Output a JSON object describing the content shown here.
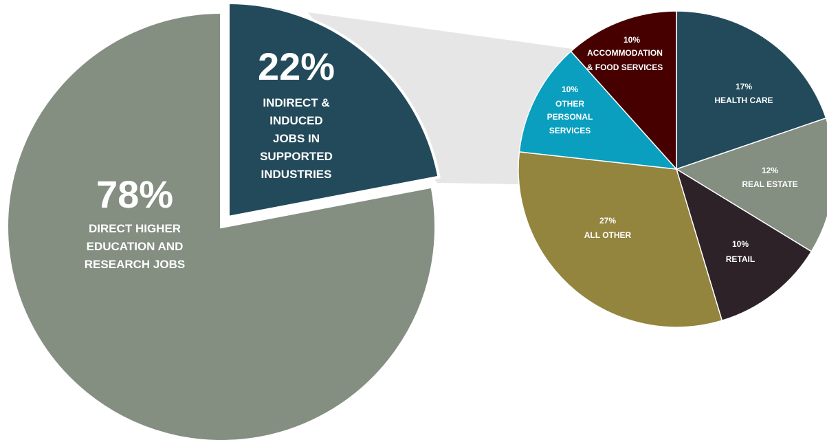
{
  "chart_data": [
    {
      "type": "pie",
      "slices": [
        {
          "value": 78,
          "pct_label": "78%",
          "label_lines": [
            "DIRECT HIGHER",
            "EDUCATION AND",
            "RESEARCH JOBS"
          ],
          "color": "#848e81"
        },
        {
          "value": 22,
          "pct_label": "22%",
          "label_lines": [
            "INDIRECT &",
            "INDUCED",
            "JOBS IN",
            "SUPPORTED",
            "INDUSTRIES"
          ],
          "color": "#234a5a",
          "exploded": true
        }
      ]
    },
    {
      "type": "pie",
      "slices": [
        {
          "value": 17,
          "pct_label": "17%",
          "label_lines": [
            "HEALTH CARE"
          ],
          "color": "#234a5a"
        },
        {
          "value": 12,
          "pct_label": "12%",
          "label_lines": [
            "REAL ESTATE"
          ],
          "color": "#848e81"
        },
        {
          "value": 10,
          "pct_label": "10%",
          "label_lines": [
            "RETAIL"
          ],
          "color": "#2e2229"
        },
        {
          "value": 27,
          "pct_label": "27%",
          "label_lines": [
            "ALL OTHER"
          ],
          "color": "#93843e"
        },
        {
          "value": 10,
          "pct_label": "10%",
          "label_lines": [
            "OTHER",
            "PERSONAL",
            "SERVICES"
          ],
          "color": "#0a9fbf"
        },
        {
          "value": 10,
          "pct_label": "10%",
          "label_lines": [
            "ACCOMMODATION",
            "& FOOD SERVICES"
          ],
          "color": "#470000"
        }
      ]
    }
  ],
  "connector_color": "#e6e6e6",
  "outline_color": "#ffffff"
}
